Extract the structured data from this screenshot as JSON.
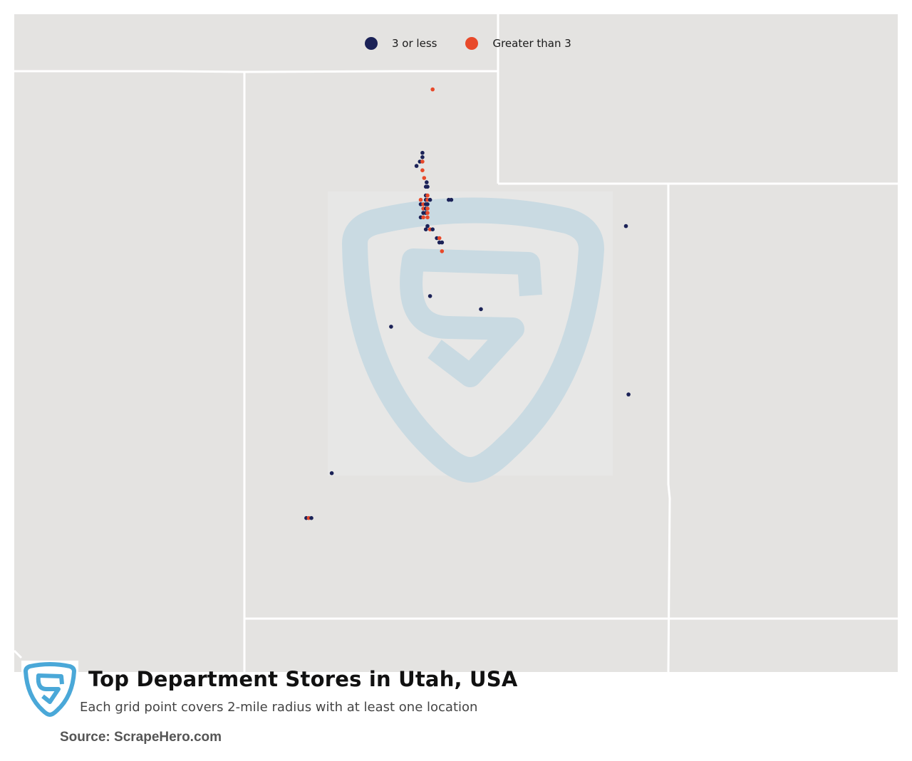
{
  "title": "Top Department Stores in Utah, USA",
  "subtitle": "Each grid point covers 2-mile radius with at least one location",
  "source": "Source: ScrapeHero.com",
  "legend": [
    {
      "label": "3 or less",
      "color": "#1b2257"
    },
    {
      "label": "Greater than 3",
      "color": "#e8492a"
    }
  ],
  "colors": {
    "background": "#e4e3e1",
    "borders": "#ffffff",
    "watermark": "#c9dae2",
    "logo": "#4aa8d8"
  },
  "icons": {
    "footer_logo": "scrapehero-shield-logo",
    "watermark": "scrapehero-shield-watermark"
  },
  "locations": [
    {
      "lat": 41.84,
      "lon": -111.83,
      "group": "greater"
    },
    {
      "lat": 41.26,
      "lon": -111.95,
      "group": "3-or-less"
    },
    {
      "lat": 41.22,
      "lon": -111.95,
      "group": "3-or-less"
    },
    {
      "lat": 41.18,
      "lon": -111.98,
      "group": "3-or-less"
    },
    {
      "lat": 41.18,
      "lon": -111.95,
      "group": "greater"
    },
    {
      "lat": 41.14,
      "lon": -112.02,
      "group": "3-or-less"
    },
    {
      "lat": 41.1,
      "lon": -111.95,
      "group": "greater"
    },
    {
      "lat": 41.03,
      "lon": -111.93,
      "group": "greater"
    },
    {
      "lat": 40.99,
      "lon": -111.9,
      "group": "3-or-less"
    },
    {
      "lat": 40.95,
      "lon": -111.91,
      "group": "3-or-less"
    },
    {
      "lat": 40.95,
      "lon": -111.89,
      "group": "3-or-less"
    },
    {
      "lat": 40.87,
      "lon": -111.91,
      "group": "3-or-less"
    },
    {
      "lat": 40.87,
      "lon": -111.89,
      "group": "greater"
    },
    {
      "lat": 40.83,
      "lon": -111.97,
      "group": "greater"
    },
    {
      "lat": 40.83,
      "lon": -111.91,
      "group": "3-or-less"
    },
    {
      "lat": 40.83,
      "lon": -111.89,
      "group": "greater"
    },
    {
      "lat": 40.83,
      "lon": -111.86,
      "group": "3-or-less"
    },
    {
      "lat": 40.83,
      "lon": -111.64,
      "group": "3-or-less"
    },
    {
      "lat": 40.83,
      "lon": -111.61,
      "group": "3-or-less"
    },
    {
      "lat": 40.79,
      "lon": -111.97,
      "group": "3-or-less"
    },
    {
      "lat": 40.79,
      "lon": -111.94,
      "group": "greater"
    },
    {
      "lat": 40.79,
      "lon": -111.91,
      "group": "3-or-less"
    },
    {
      "lat": 40.79,
      "lon": -111.89,
      "group": "3-or-less"
    },
    {
      "lat": 40.75,
      "lon": -111.94,
      "group": "greater"
    },
    {
      "lat": 40.75,
      "lon": -111.91,
      "group": "3-or-less"
    },
    {
      "lat": 40.75,
      "lon": -111.89,
      "group": "greater"
    },
    {
      "lat": 40.71,
      "lon": -111.94,
      "group": "3-or-less"
    },
    {
      "lat": 40.71,
      "lon": -111.91,
      "group": "3-or-less"
    },
    {
      "lat": 40.71,
      "lon": -111.89,
      "group": "greater"
    },
    {
      "lat": 40.67,
      "lon": -111.97,
      "group": "3-or-less"
    },
    {
      "lat": 40.67,
      "lon": -111.94,
      "group": "greater"
    },
    {
      "lat": 40.67,
      "lon": -111.89,
      "group": "greater"
    },
    {
      "lat": 40.59,
      "lon": -111.89,
      "group": "3-or-less"
    },
    {
      "lat": 40.56,
      "lon": -111.91,
      "group": "3-or-less"
    },
    {
      "lat": 40.56,
      "lon": -111.86,
      "group": "greater"
    },
    {
      "lat": 40.56,
      "lon": -111.83,
      "group": "3-or-less"
    },
    {
      "lat": 40.48,
      "lon": -111.78,
      "group": "3-or-less"
    },
    {
      "lat": 40.48,
      "lon": -111.75,
      "group": "greater"
    },
    {
      "lat": 40.44,
      "lon": -111.75,
      "group": "3-or-less"
    },
    {
      "lat": 40.44,
      "lon": -111.72,
      "group": "3-or-less"
    },
    {
      "lat": 40.36,
      "lon": -111.72,
      "group": "greater"
    },
    {
      "lat": 40.59,
      "lon": -109.55,
      "group": "3-or-less"
    },
    {
      "lat": 39.95,
      "lon": -111.86,
      "group": "3-or-less"
    },
    {
      "lat": 39.83,
      "lon": -111.26,
      "group": "3-or-less"
    },
    {
      "lat": 39.67,
      "lon": -112.32,
      "group": "3-or-less"
    },
    {
      "lat": 39.05,
      "lon": -109.52,
      "group": "3-or-less"
    },
    {
      "lat": 38.33,
      "lon": -113.02,
      "group": "3-or-less"
    },
    {
      "lat": 37.92,
      "lon": -113.32,
      "group": "3-or-less"
    },
    {
      "lat": 37.92,
      "lon": -113.29,
      "group": "greater"
    },
    {
      "lat": 37.92,
      "lon": -113.26,
      "group": "3-or-less"
    }
  ]
}
